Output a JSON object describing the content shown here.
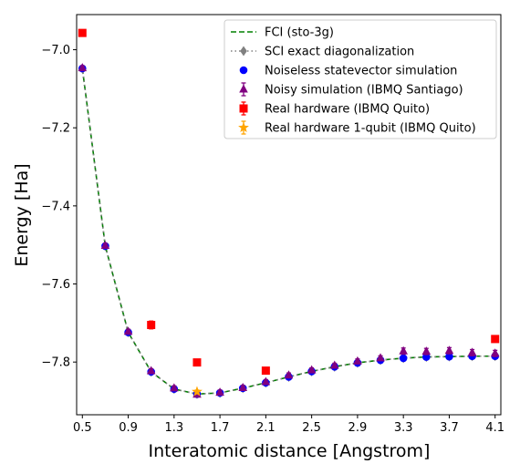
{
  "chart_data": {
    "type": "line",
    "title": "",
    "xlabel": "Interatomic distance [Angstrom]",
    "ylabel": "Energy [Ha]",
    "xlim": [
      0.45,
      4.15
    ],
    "ylim": [
      -7.935,
      -6.91
    ],
    "x_ticks": [
      "0.5",
      "0.9",
      "1.3",
      "1.7",
      "2.1",
      "2.5",
      "2.9",
      "3.3",
      "3.7",
      "4.1"
    ],
    "y_ticks": [
      "−7.0",
      "−7.2",
      "−7.4",
      "−7.6",
      "−7.8"
    ],
    "grid": false,
    "legend_position": "top-right",
    "series": [
      {
        "name": "FCI (sto-3g)",
        "style": "dashed-line",
        "color": "#008000",
        "x": [
          0.5,
          0.7,
          0.9,
          1.1,
          1.3,
          1.5,
          1.7,
          1.9,
          2.1,
          2.3,
          2.5,
          2.7,
          2.9,
          3.1,
          3.3,
          3.5,
          3.7,
          3.9,
          4.1
        ],
        "y": [
          -7.048,
          -7.503,
          -7.724,
          -7.825,
          -7.869,
          -7.882,
          -7.879,
          -7.867,
          -7.853,
          -7.838,
          -7.824,
          -7.812,
          -7.802,
          -7.795,
          -7.79,
          -7.787,
          -7.786,
          -7.785,
          -7.785
        ]
      },
      {
        "name": "SCI exact diagonalization",
        "style": "dotted-diamond",
        "color": "#808080",
        "x": [
          0.5,
          0.7,
          0.9,
          1.1,
          1.3,
          1.5,
          1.7,
          1.9,
          2.1,
          2.3,
          2.5,
          2.7,
          2.9,
          3.1,
          3.3,
          3.5,
          3.7,
          3.9,
          4.1
        ],
        "y": [
          -7.048,
          -7.503,
          -7.724,
          -7.825,
          -7.869,
          -7.882,
          -7.879,
          -7.867,
          -7.853,
          -7.838,
          -7.824,
          -7.812,
          -7.802,
          -7.795,
          -7.79,
          -7.787,
          -7.786,
          -7.785,
          -7.785
        ]
      },
      {
        "name": "Noiseless statevector simulation",
        "style": "circle",
        "color": "#0000ff",
        "x": [
          0.5,
          0.7,
          0.9,
          1.1,
          1.3,
          1.5,
          1.7,
          1.9,
          2.1,
          2.3,
          2.5,
          2.7,
          2.9,
          3.1,
          3.3,
          3.5,
          3.7,
          3.9,
          4.1
        ],
        "y": [
          -7.048,
          -7.503,
          -7.724,
          -7.825,
          -7.869,
          -7.882,
          -7.879,
          -7.867,
          -7.853,
          -7.838,
          -7.824,
          -7.812,
          -7.802,
          -7.795,
          -7.79,
          -7.787,
          -7.786,
          -7.785,
          -7.785
        ]
      },
      {
        "name": "Noisy simulation (IBMQ Santiago)",
        "style": "triangle-errorbar",
        "color": "#800080",
        "x": [
          0.5,
          0.7,
          0.9,
          1.1,
          1.3,
          1.5,
          1.7,
          1.9,
          2.1,
          2.3,
          2.5,
          2.7,
          2.9,
          3.1,
          3.3,
          3.5,
          3.7,
          3.9,
          4.1
        ],
        "y": [
          -7.047,
          -7.502,
          -7.722,
          -7.823,
          -7.867,
          -7.883,
          -7.878,
          -7.866,
          -7.851,
          -7.834,
          -7.821,
          -7.809,
          -7.798,
          -7.79,
          -7.772,
          -7.773,
          -7.771,
          -7.776,
          -7.778
        ],
        "err": [
          0.006,
          0.006,
          0.006,
          0.006,
          0.006,
          0.006,
          0.006,
          0.006,
          0.006,
          0.006,
          0.006,
          0.006,
          0.006,
          0.006,
          0.008,
          0.008,
          0.008,
          0.008,
          0.008
        ]
      },
      {
        "name": "Real hardware (IBMQ Quito)",
        "style": "square-errorbar",
        "color": "#ff0000",
        "x": [
          0.5,
          1.1,
          1.5,
          2.1,
          4.1
        ],
        "y": [
          -6.957,
          -7.705,
          -7.801,
          -7.822,
          -7.741
        ],
        "err": [
          0.004,
          0.01,
          0.004,
          0.004,
          0.004
        ]
      },
      {
        "name": "Real hardware 1-qubit (IBMQ Quito)",
        "style": "star-errorbar",
        "color": "#ffa500",
        "x": [
          1.5
        ],
        "y": [
          -7.876
        ],
        "err": [
          0.004
        ]
      }
    ]
  }
}
